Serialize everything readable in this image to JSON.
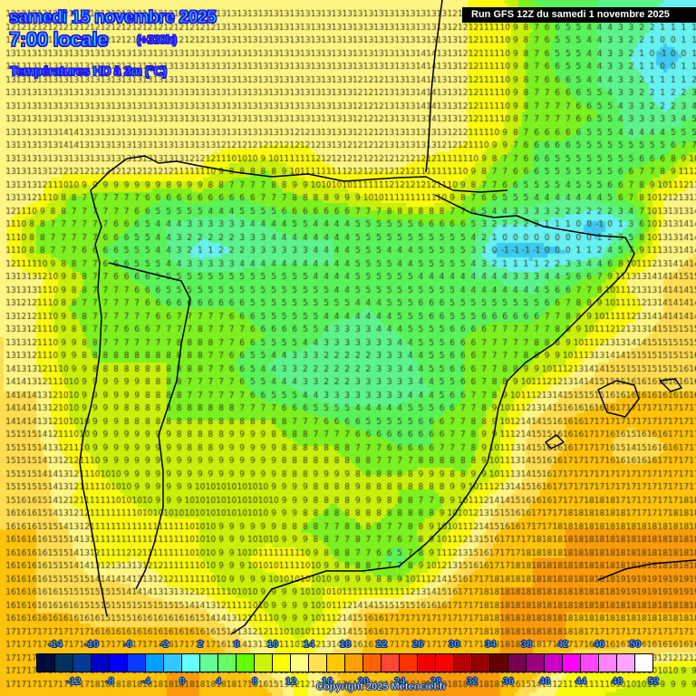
{
  "header": {
    "date": "samedi 15 novembre 2025",
    "time": "7:00 locale",
    "lead": "(+330h)",
    "variable": "Températures HD à 2m (°C)"
  },
  "run_info": "Run GFS 12Z du samedi 1 novembre 2025",
  "copyright": "Copyright 2025 Meteociel.fr",
  "legend": {
    "colors": [
      "#000c3c",
      "#00325f",
      "#003c96",
      "#0000c8",
      "#0000ff",
      "#0a3cff",
      "#00a0ff",
      "#32c8ff",
      "#64ffff",
      "#64ff96",
      "#64ff64",
      "#64ff00",
      "#c8f50a",
      "#ffff00",
      "#ffff82",
      "#ffe150",
      "#ffc800",
      "#ffa000",
      "#ff6400",
      "#ff4632",
      "#ff3200",
      "#f00000",
      "#fa0000",
      "#b40000",
      "#960000",
      "#640000",
      "#780050",
      "#9b007b",
      "#c800c8",
      "#ff00ff",
      "#ff46ff",
      "#ff82ff",
      "#ffa5ff",
      "#ffffff"
    ],
    "top_labels": [
      "-14",
      "-10",
      "-6",
      "-2",
      "2",
      "6",
      "10",
      "14",
      "18",
      "22",
      "26",
      "30",
      "34",
      "38",
      "42",
      "46",
      "50"
    ],
    "bottom_labels": [
      "-12",
      "-8",
      "-4",
      "0",
      "4",
      "8",
      "12",
      "16",
      "20",
      "24",
      "28",
      "32",
      "36",
      "40",
      "44",
      "48",
      "52"
    ]
  },
  "chart_data": {
    "type": "heatmap",
    "title": "Températures HD à 2m (°C)",
    "subtitle": "samedi 15 novembre 2025 7:00 locale (+330h) — Run GFS 12Z du samedi 1 novembre 2025",
    "region": "Iberian Peninsula, southwestern France, Balearic Islands",
    "units": "°C",
    "grid_cols": 22,
    "grid_rows": 26,
    "value_range": [
      -1,
      19
    ],
    "rows": [
      [
        12,
        12,
        12,
        12,
        12,
        12,
        13,
        13,
        13,
        13,
        13,
        13,
        13,
        13,
        12,
        11,
        6,
        5,
        4,
        3,
        2,
        1
      ],
      [
        12,
        12,
        12,
        12,
        12,
        12,
        12,
        13,
        13,
        13,
        13,
        13,
        13,
        13,
        12,
        11,
        8,
        5,
        4,
        3,
        1,
        1
      ],
      [
        13,
        13,
        13,
        13,
        13,
        13,
        13,
        13,
        13,
        13,
        13,
        13,
        13,
        14,
        12,
        11,
        7,
        5,
        4,
        2,
        -1,
        1
      ],
      [
        13,
        13,
        13,
        13,
        13,
        13,
        13,
        13,
        13,
        13,
        13,
        12,
        13,
        14,
        12,
        11,
        7,
        6,
        4,
        3,
        1,
        2
      ],
      [
        13,
        13,
        13,
        13,
        13,
        13,
        13,
        13,
        13,
        13,
        13,
        12,
        13,
        14,
        12,
        11,
        7,
        7,
        6,
        3,
        2,
        4
      ],
      [
        13,
        13,
        14,
        13,
        13,
        13,
        13,
        13,
        13,
        12,
        13,
        12,
        13,
        13,
        12,
        10,
        6,
        6,
        5,
        4,
        5,
        6
      ],
      [
        13,
        13,
        13,
        13,
        13,
        13,
        12,
        9,
        8,
        11,
        12,
        12,
        12,
        11,
        11,
        7,
        6,
        5,
        5,
        6,
        7,
        12
      ],
      [
        14,
        13,
        8,
        7,
        7,
        6,
        7,
        6,
        7,
        8,
        9,
        10,
        12,
        12,
        8,
        6,
        5,
        4,
        5,
        7,
        12,
        13
      ],
      [
        13,
        8,
        7,
        7,
        6,
        4,
        3,
        3,
        4,
        5,
        4,
        5,
        5,
        6,
        6,
        2,
        2,
        1,
        -1,
        2,
        13,
        14
      ],
      [
        13,
        8,
        7,
        6,
        5,
        4,
        1,
        2,
        3,
        3,
        4,
        5,
        4,
        5,
        5,
        -1,
        -1,
        0,
        1,
        7,
        13,
        14
      ],
      [
        13,
        13,
        9,
        7,
        6,
        5,
        5,
        5,
        5,
        5,
        4,
        5,
        5,
        4,
        4,
        4,
        3,
        5,
        7,
        13,
        14,
        15
      ],
      [
        13,
        12,
        8,
        7,
        7,
        6,
        6,
        6,
        5,
        5,
        5,
        4,
        5,
        6,
        5,
        5,
        5,
        7,
        9,
        11,
        14,
        14
      ],
      [
        14,
        12,
        9,
        7,
        6,
        7,
        8,
        7,
        6,
        6,
        3,
        3,
        4,
        5,
        6,
        7,
        7,
        8,
        11,
        13,
        15,
        15
      ],
      [
        14,
        12,
        9,
        8,
        8,
        8,
        8,
        6,
        4,
        2,
        2,
        2,
        3,
        5,
        6,
        7,
        8,
        10,
        14,
        15,
        15,
        16
      ],
      [
        14,
        14,
        10,
        9,
        9,
        8,
        7,
        7,
        5,
        4,
        2,
        3,
        3,
        4,
        6,
        8,
        11,
        14,
        15,
        16,
        16,
        16
      ],
      [
        14,
        14,
        10,
        9,
        8,
        8,
        8,
        8,
        8,
        7,
        6,
        5,
        5,
        6,
        7,
        9,
        14,
        16,
        17,
        17,
        17,
        17
      ],
      [
        15,
        15,
        11,
        9,
        9,
        9,
        8,
        9,
        9,
        8,
        8,
        7,
        6,
        6,
        7,
        10,
        15,
        16,
        17,
        14,
        16,
        17
      ],
      [
        15,
        15,
        13,
        10,
        9,
        9,
        9,
        9,
        9,
        8,
        9,
        8,
        8,
        9,
        8,
        10,
        15,
        17,
        17,
        17,
        17,
        17
      ],
      [
        15,
        16,
        12,
        11,
        10,
        9,
        10,
        10,
        10,
        9,
        8,
        9,
        8,
        7,
        10,
        14,
        16,
        17,
        18,
        17,
        17,
        18
      ],
      [
        16,
        16,
        14,
        11,
        11,
        11,
        10,
        9,
        9,
        8,
        7,
        8,
        7,
        9,
        11,
        16,
        17,
        18,
        18,
        18,
        18,
        18
      ],
      [
        16,
        16,
        15,
        11,
        12,
        11,
        10,
        9,
        11,
        11,
        8,
        7,
        5,
        9,
        14,
        17,
        18,
        18,
        18,
        18,
        18,
        18
      ],
      [
        16,
        16,
        15,
        15,
        14,
        12,
        11,
        9,
        9,
        10,
        10,
        9,
        9,
        13,
        17,
        18,
        18,
        18,
        18,
        19,
        19,
        19
      ],
      [
        16,
        16,
        16,
        15,
        15,
        16,
        15,
        12,
        10,
        8,
        11,
        16,
        17,
        17,
        17,
        18,
        18,
        18,
        18,
        18,
        18,
        18
      ],
      [
        17,
        17,
        17,
        17,
        17,
        16,
        17,
        15,
        12,
        10,
        13,
        16,
        17,
        17,
        17,
        18,
        18,
        18,
        17,
        17,
        17,
        17
      ],
      [
        17,
        17,
        17,
        17,
        17,
        18,
        18,
        17,
        14,
        11,
        16,
        17,
        18,
        18,
        18,
        18,
        18,
        12,
        12,
        11,
        10,
        9
      ],
      [
        17,
        17,
        17,
        18,
        18,
        18,
        18,
        18,
        17,
        11,
        15,
        18,
        18,
        18,
        18,
        18,
        13,
        11,
        10,
        9,
        9,
        9
      ]
    ]
  }
}
